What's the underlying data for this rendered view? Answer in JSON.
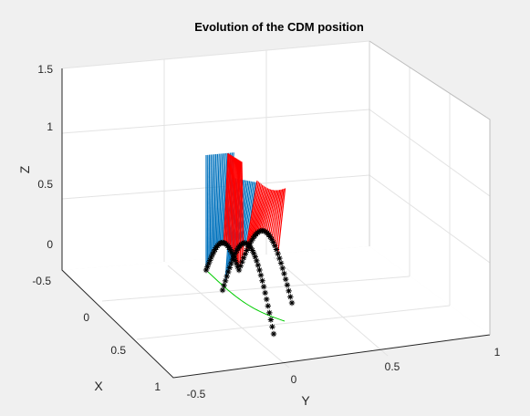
{
  "chart_data": {
    "type": "3d-line",
    "title": "Evolution of the CDM position",
    "xlabel": "X",
    "ylabel": "Y",
    "zlabel": "Z",
    "x_ticks": [
      "-0.5",
      "0",
      "0.5",
      "1"
    ],
    "y_ticks": [
      "-0.5",
      "0",
      "0.5",
      "1"
    ],
    "z_ticks": [
      "0",
      "0.5",
      "1",
      "1.5"
    ],
    "xlim": [
      -0.5,
      1
    ],
    "ylim": [
      -0.5,
      1
    ],
    "zlim": [
      -0.1,
      1.5
    ],
    "grid": true,
    "series": [
      {
        "role": "swing-leg-blue",
        "color": "#0072bd",
        "marker": "line"
      },
      {
        "role": "swing-leg-red",
        "color": "#ff0000",
        "marker": "line"
      },
      {
        "role": "foot-trajectory",
        "color": "#000000",
        "marker": "asterisk"
      },
      {
        "role": "cdm-ground",
        "color": "#00cc00",
        "marker": "line"
      }
    ]
  },
  "colors": {
    "figure_bg": "#f0f0f0",
    "axes_bg": "#ffffff",
    "grid": "#e3e3e3",
    "axis_line": "#262626"
  }
}
